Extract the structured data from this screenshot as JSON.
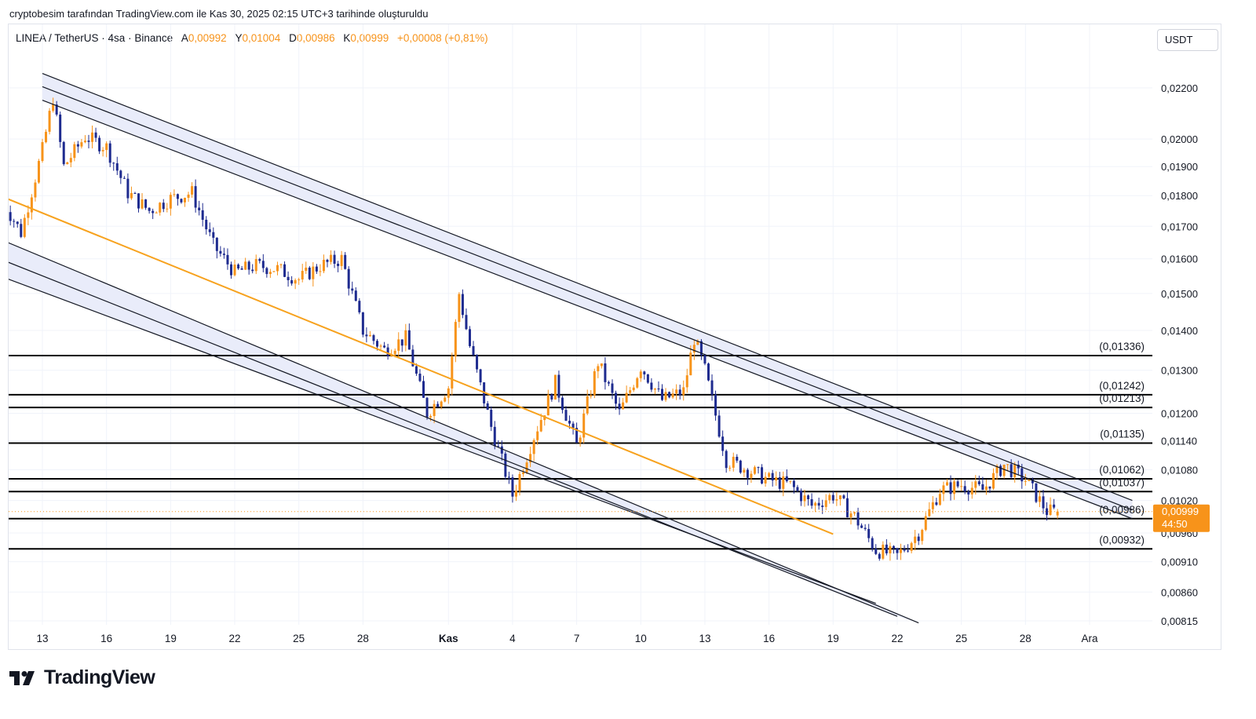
{
  "caption": "cryptobesim tarafından TradingView.com ile Kas 30, 2025 02:15 UTC+3 tarihinde oluşturuldu",
  "legend": {
    "symbol": "LINEA / TetherUS · 4sa · Binance",
    "open_label": "A",
    "open": "0,00992",
    "high_label": "Y",
    "high": "0,01004",
    "low_label": "D",
    "low": "0,00986",
    "close_label": "K",
    "close": "0,00999",
    "change": "+0,00008 (+0,81%)"
  },
  "currency_button": "USDT",
  "brand": "TradingView",
  "last_price_label": {
    "price": "0,00999",
    "countdown": "44:50"
  },
  "colors": {
    "up": "#f7931a",
    "down": "#1e2b8f",
    "trendline": "#f7a21e",
    "channel_fill": "#e9ecfa",
    "level": "#000000"
  },
  "chart_data": {
    "type": "candlestick",
    "y_axis": {
      "scale": "log",
      "range": [
        0.008,
        0.023
      ],
      "ticks": [
        "0,02200",
        "0,02000",
        "0,01900",
        "0,01800",
        "0,01700",
        "0,01600",
        "0,01500",
        "0,01400",
        "0,01300",
        "0,01200",
        "0,01140",
        "0,01080",
        "0,01020",
        "0,00960",
        "0,00910",
        "0,00860",
        "0,00815"
      ]
    },
    "x_axis": {
      "ticks": [
        "13",
        "16",
        "19",
        "22",
        "25",
        "28",
        "Kas",
        "4",
        "7",
        "10",
        "13",
        "16",
        "19",
        "22",
        "25",
        "28",
        "Ara"
      ]
    },
    "levels": [
      {
        "value": 0.01336,
        "label": "(0,01336)"
      },
      {
        "value": 0.01242,
        "label": "(0,01242)"
      },
      {
        "value": 0.01213,
        "label": "(0,01213)"
      },
      {
        "value": 0.01135,
        "label": "(0,01135)"
      },
      {
        "value": 0.01062,
        "label": "(0,01062)"
      },
      {
        "value": 0.01037,
        "label": "(0,01037)"
      },
      {
        "value": 0.00986,
        "label": "(0,00986)"
      },
      {
        "value": 0.00932,
        "label": "(0,00932)"
      }
    ],
    "last_price": 0.00999,
    "trendline": {
      "from": {
        "x": "Ekim 11",
        "y": 0.018
      },
      "to": {
        "x": "Kasım 19",
        "y": 0.00958
      }
    },
    "upper_channel": [
      {
        "from": {
          "x": "Ekim 13",
          "y": 0.0226
        },
        "to": {
          "x": "Aralık 3",
          "y": 0.0102
        }
      },
      {
        "from": {
          "x": "Ekim 13",
          "y": 0.02205
        },
        "to": {
          "x": "Aralık 3",
          "y": 0.01002
        }
      },
      {
        "from": {
          "x": "Ekim 13",
          "y": 0.0215
        },
        "to": {
          "x": "Aralık 3",
          "y": 0.00986
        }
      }
    ],
    "lower_channel": [
      {
        "from": {
          "x": "Ekim 11",
          "y": 0.0166
        },
        "to": {
          "x": "Kasım 23",
          "y": 0.00812
        }
      },
      {
        "from": {
          "x": "Ekim 11",
          "y": 0.016
        },
        "to": {
          "x": "Kasım 22",
          "y": 0.00822
        }
      },
      {
        "from": {
          "x": "Ekim 11",
          "y": 0.0155
        },
        "to": {
          "x": "Kasım 21",
          "y": 0.00842
        }
      }
    ],
    "price_path": [
      [
        "Ekim 11",
        0.018
      ],
      [
        "Ekim 12",
        0.0168
      ],
      [
        "Ekim 13",
        0.0196
      ],
      [
        "Ekim 13.5",
        0.0216
      ],
      [
        "Ekim 14",
        0.019
      ],
      [
        "Ekim 15",
        0.0201
      ],
      [
        "Ekim 16",
        0.0197
      ],
      [
        "Ekim 17",
        0.0181
      ],
      [
        "Ekim 18",
        0.0175
      ],
      [
        "Ekim 19",
        0.0179
      ],
      [
        "Ekim 20",
        0.0181
      ],
      [
        "Ekim 21",
        0.0164
      ],
      [
        "Ekim 22",
        0.0156
      ],
      [
        "Ekim 23",
        0.0158
      ],
      [
        "Ekim 24",
        0.0157
      ],
      [
        "Ekim 25",
        0.0154
      ],
      [
        "Ekim 26",
        0.0158
      ],
      [
        "Ekim 27",
        0.016
      ],
      [
        "Ekim 28",
        0.014
      ],
      [
        "Ekim 29",
        0.0135
      ],
      [
        "Ekim 30",
        0.0138
      ],
      [
        "Ekim 31",
        0.012
      ],
      [
        "Kasım 1",
        0.0126
      ],
      [
        "Kasım 1.5",
        0.015
      ],
      [
        "Kasım 2",
        0.0136
      ],
      [
        "Kasım 3",
        0.0117
      ],
      [
        "Kasım 4",
        0.0103
      ],
      [
        "Kasım 5",
        0.0115
      ],
      [
        "Kasım 6",
        0.0127
      ],
      [
        "Kasım 7",
        0.0113
      ],
      [
        "Kasım 8",
        0.0132
      ],
      [
        "Kasım 9",
        0.012
      ],
      [
        "Kasım 10",
        0.0131
      ],
      [
        "Kasım 11",
        0.0123
      ],
      [
        "Kasım 12",
        0.0125
      ],
      [
        "Kasım 12.5",
        0.0138
      ],
      [
        "Kasım 13",
        0.013
      ],
      [
        "Kasım 14",
        0.011
      ],
      [
        "Kasım 15",
        0.0108
      ],
      [
        "Kasım 16",
        0.0106
      ],
      [
        "Kasım 17",
        0.0105
      ],
      [
        "Kasım 18",
        0.0101
      ],
      [
        "Kasım 19",
        0.0103
      ],
      [
        "Kasım 20",
        0.0099
      ],
      [
        "Kasım 21",
        0.0093
      ],
      [
        "Kasım 22",
        0.0092
      ],
      [
        "Kasım 23",
        0.0096
      ],
      [
        "Kasım 24",
        0.0104
      ],
      [
        "Kasım 25",
        0.0105
      ],
      [
        "Kasım 26",
        0.0104
      ],
      [
        "Kasım 27",
        0.0109
      ],
      [
        "Kasım 28",
        0.0106
      ],
      [
        "Kasım 29",
        0.01
      ],
      [
        "Kasım 29.5",
        0.00999
      ]
    ]
  }
}
